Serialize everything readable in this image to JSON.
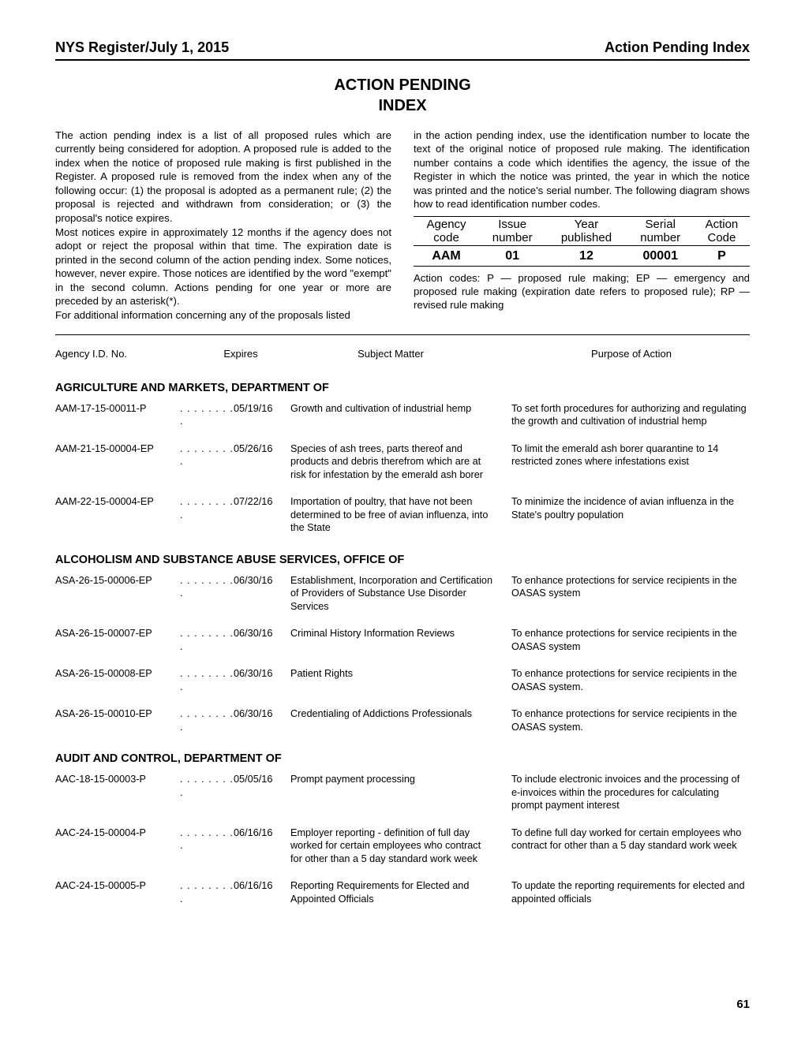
{
  "header": {
    "left": "NYS Register/July 1, 2015",
    "right": "Action Pending Index"
  },
  "title_line1": "ACTION PENDING",
  "title_line2": "INDEX",
  "intro": {
    "left_p1": "The action pending index is a list of all proposed rules which are currently being considered for adoption. A proposed rule is added to the index when the notice of proposed rule making is first published in the Register. A proposed rule is removed from the index when any of the following occur: (1) the proposal is adopted as a permanent rule; (2) the proposal is rejected and withdrawn from consideration; or (3) the proposal's notice expires.",
    "left_p2": "Most notices expire in approximately 12 months if the agency does not adopt or reject the proposal within that time. The expiration date is printed in the second column of the action pending index. Some notices, however, never expire. Those notices are identified by the word \"exempt\" in the second column. Actions pending for one year or more are preceded by an asterisk(*).",
    "left_p3": "For additional information concerning any of the proposals listed",
    "right_p1": "in the action pending index, use the identification number to locate the text of the original notice of proposed rule making. The identification number contains a code which identifies the agency, the issue of the Register in which the notice was printed, the year in which the notice was printed and the notice's serial number. The following diagram shows how to read identification number codes."
  },
  "id_table": {
    "headers": [
      [
        "Agency",
        "code"
      ],
      [
        "Issue",
        "number"
      ],
      [
        "Year",
        "published"
      ],
      [
        "Serial",
        "number"
      ],
      [
        "Action",
        "Code"
      ]
    ],
    "example": [
      "AAM",
      "01",
      "12",
      "00001",
      "P"
    ]
  },
  "action_codes_text": "Action codes: P — proposed rule making; EP — emergency and proposed rule making (expiration date refers to proposed rule); RP — revised rule making",
  "col_headers": {
    "id": "Agency I.D. No.",
    "exp": "Expires",
    "subj": "Subject Matter",
    "purp": "Purpose of Action"
  },
  "sections": [
    {
      "name": "AGRICULTURE AND MARKETS, DEPARTMENT OF",
      "entries": [
        {
          "id": "AAM-17-15-00011-P",
          "exp": "05/19/16",
          "subj": "Growth and cultivation of industrial hemp",
          "purp": "To set forth procedures for authorizing and regulating the growth and cultivation of industrial hemp"
        },
        {
          "id": "AAM-21-15-00004-EP",
          "exp": "05/26/16",
          "subj": "Species of ash trees, parts thereof and products and debris therefrom which are at risk for infestation by the emerald ash borer",
          "purp": "To limit the emerald ash borer quarantine to 14 restricted zones where infestations exist"
        },
        {
          "id": "AAM-22-15-00004-EP",
          "exp": "07/22/16",
          "subj": "Importation of poultry, that have not been determined to be free of avian influenza, into the State",
          "purp": "To minimize the incidence of avian influenza in the State's poultry population"
        }
      ]
    },
    {
      "name": "ALCOHOLISM AND SUBSTANCE ABUSE SERVICES, OFFICE OF",
      "entries": [
        {
          "id": "ASA-26-15-00006-EP",
          "exp": "06/30/16",
          "subj": "Establishment, Incorporation and Certification of Providers of Substance Use Disorder Services",
          "purp": "To enhance protections for service recipients in the OASAS system"
        },
        {
          "id": "ASA-26-15-00007-EP",
          "exp": "06/30/16",
          "subj": "Criminal History Information Reviews",
          "purp": "To enhance protections for service recipients in the OASAS system"
        },
        {
          "id": "ASA-26-15-00008-EP",
          "exp": "06/30/16",
          "subj": "Patient Rights",
          "purp": "To enhance protections for service recipients in the OASAS system."
        },
        {
          "id": "ASA-26-15-00010-EP",
          "exp": "06/30/16",
          "subj": "Credentialing of Addictions Professionals",
          "purp": "To enhance protections for service recipients in the OASAS system."
        }
      ]
    },
    {
      "name": "AUDIT AND CONTROL, DEPARTMENT OF",
      "entries": [
        {
          "id": "AAC-18-15-00003-P",
          "exp": "05/05/16",
          "subj": "Prompt payment processing",
          "purp": "To include electronic invoices and the processing of e-invoices within the procedures for calculating prompt payment interest"
        },
        {
          "id": "AAC-24-15-00004-P",
          "exp": "06/16/16",
          "subj": "Employer reporting - definition of full day worked for certain employees who contract for other than a 5 day standard work week",
          "purp": "To define full day worked for certain employees who contract for other than a 5 day standard work week"
        },
        {
          "id": "AAC-24-15-00005-P",
          "exp": "06/16/16",
          "subj": "Reporting Requirements for Elected and Appointed Officials",
          "purp": "To update the reporting requirements for elected and appointed officials"
        }
      ]
    }
  ],
  "page_number": "61",
  "dots": ". . . . . . . . ."
}
